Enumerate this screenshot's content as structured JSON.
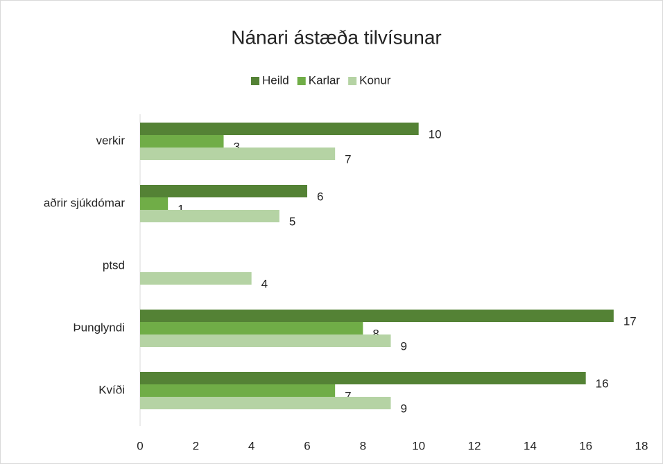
{
  "chart_data": {
    "type": "hbar",
    "title": "Nánari ástæða tilvísunar",
    "categories": [
      "verkir",
      "aðrir sjúkdómar",
      "ptsd",
      "Þunglyndi",
      "Kvíði"
    ],
    "series": [
      {
        "name": "Heild",
        "color": "#548235",
        "values": [
          10,
          6,
          null,
          17,
          16
        ]
      },
      {
        "name": "Karlar",
        "color": "#70ad47",
        "values": [
          3,
          1,
          null,
          8,
          7
        ]
      },
      {
        "name": "Konur",
        "color": "#b5d3a4",
        "values": [
          7,
          5,
          4,
          9,
          9
        ]
      }
    ],
    "xlim": [
      0,
      18
    ],
    "xticks": [
      0,
      2,
      4,
      6,
      8,
      10,
      12,
      14,
      16,
      18
    ],
    "grid": false,
    "legend": "top"
  }
}
